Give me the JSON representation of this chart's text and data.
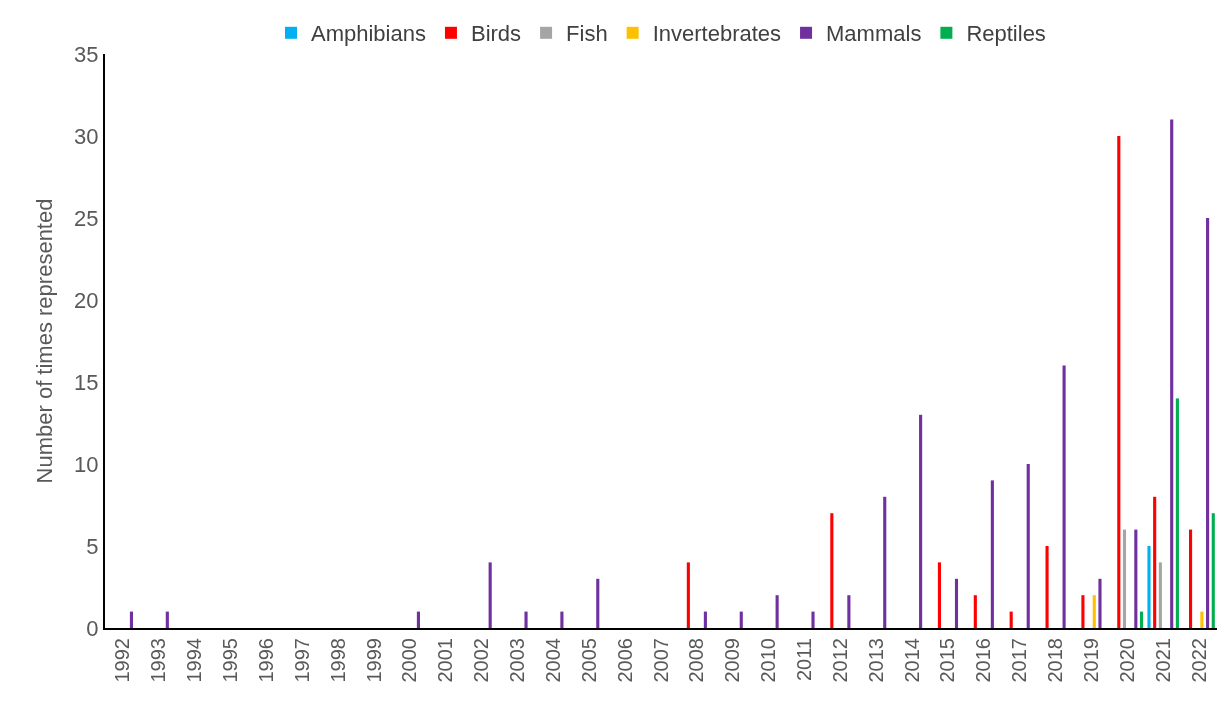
{
  "chart_data": {
    "type": "bar",
    "ylabel": "Number of times represented",
    "categories": [
      "1992",
      "1993",
      "1994",
      "1995",
      "1996",
      "1997",
      "1998",
      "1999",
      "2000",
      "2001",
      "2002",
      "2003",
      "2004",
      "2005",
      "2006",
      "2007",
      "2008",
      "2009",
      "2010",
      "2011",
      "2012",
      "2013",
      "2014",
      "2015",
      "2016",
      "2017",
      "2018",
      "2019",
      "2020",
      "2021",
      "2022"
    ],
    "series": [
      {
        "name": "Amphibians",
        "color": "#00b0f0",
        "values": [
          null,
          null,
          null,
          null,
          null,
          null,
          null,
          null,
          null,
          null,
          null,
          null,
          null,
          null,
          null,
          null,
          null,
          null,
          null,
          null,
          null,
          null,
          null,
          null,
          null,
          null,
          null,
          null,
          null,
          5,
          null
        ]
      },
      {
        "name": "Birds",
        "color": "#ff0000",
        "values": [
          null,
          null,
          null,
          null,
          null,
          null,
          null,
          null,
          null,
          null,
          null,
          null,
          null,
          null,
          null,
          null,
          4,
          null,
          null,
          null,
          7,
          null,
          null,
          4,
          2,
          1,
          5,
          2,
          30,
          8,
          6
        ]
      },
      {
        "name": "Fish",
        "color": "#a5a5a5",
        "values": [
          null,
          null,
          null,
          null,
          null,
          null,
          null,
          null,
          null,
          null,
          null,
          null,
          null,
          null,
          null,
          null,
          null,
          null,
          null,
          null,
          null,
          null,
          null,
          null,
          null,
          null,
          null,
          null,
          6,
          4,
          null
        ]
      },
      {
        "name": "Invertebrates",
        "color": "#ffc000",
        "values": [
          null,
          null,
          null,
          null,
          null,
          null,
          null,
          null,
          null,
          null,
          null,
          null,
          null,
          null,
          null,
          null,
          null,
          null,
          null,
          null,
          null,
          null,
          null,
          null,
          null,
          null,
          null,
          2,
          null,
          null,
          1
        ]
      },
      {
        "name": "Mammals",
        "color": "#7030a0",
        "values": [
          1,
          1,
          null,
          null,
          null,
          null,
          null,
          null,
          1,
          null,
          4,
          1,
          1,
          3,
          null,
          null,
          1,
          1,
          2,
          1,
          2,
          8,
          13,
          3,
          9,
          10,
          16,
          3,
          6,
          31,
          25
        ]
      },
      {
        "name": "Reptiles",
        "color": "#00b050",
        "values": [
          null,
          null,
          null,
          null,
          null,
          null,
          null,
          null,
          null,
          null,
          null,
          null,
          null,
          null,
          null,
          null,
          null,
          null,
          null,
          null,
          null,
          null,
          null,
          null,
          null,
          null,
          null,
          null,
          1,
          14,
          7
        ]
      }
    ],
    "ylim": [
      0,
      35
    ],
    "yticks": [
      0,
      5,
      10,
      15,
      20,
      25,
      30,
      35
    ],
    "legend": "top"
  }
}
